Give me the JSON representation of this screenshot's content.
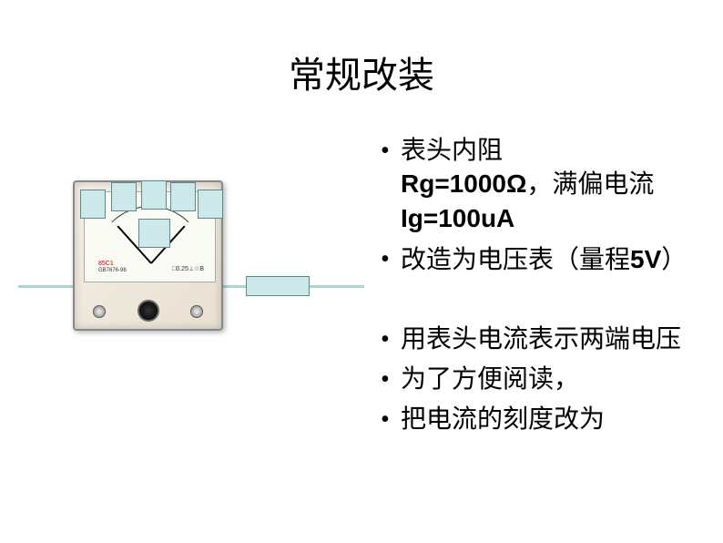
{
  "title": "常规改装",
  "bullets": {
    "b1_part1": "表头内阻",
    "b1_bold1": "Rg=1000Ω",
    "b1_part2": "，满偏电流",
    "b1_bold2": "Ig=100uA",
    "b2_part1": "改造为电压表（量程",
    "b2_bold": "5V",
    "b2_part2": "）",
    "b3": "用表头电流表示两端电压",
    "b4": "为了方便阅读，",
    "b5": "把电流的刻度改为"
  },
  "meter": {
    "label1": "85C1",
    "label2": "GB7676-98",
    "label3": "□0.25⊥☆B"
  },
  "colors": {
    "overlay_fill": "#cce8e8",
    "overlay_border": "#5a8a8a",
    "wire": "#a8d5d5",
    "meter_body_start": "#f5f0e8",
    "meter_body_end": "#e8e0d0",
    "text": "#000000",
    "background": "#ffffff"
  }
}
